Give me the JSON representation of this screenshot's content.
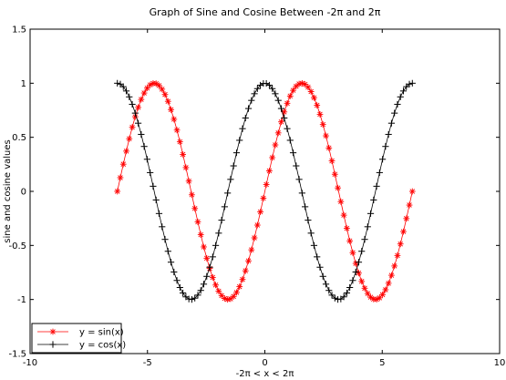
{
  "chart_data": {
    "type": "line",
    "title": "Graph of Sine and Cosine Between -2π and 2π",
    "xlabel": "-2π < x < 2π",
    "ylabel": "sine and cosine values",
    "xlim": [
      -10,
      10
    ],
    "ylim": [
      -1.5,
      1.5
    ],
    "xticks": [
      -10,
      -5,
      0,
      5,
      10
    ],
    "xtick_labels": [
      "-10",
      "-5",
      "0",
      "5",
      "10"
    ],
    "yticks": [
      -1.5,
      -1,
      -0.5,
      0,
      0.5,
      1,
      1.5
    ],
    "ytick_labels": [
      "-1.5",
      "-1",
      "-0.5",
      "0",
      "0.5",
      "1",
      "1.5"
    ],
    "grid": false,
    "legend_position": "bottom-left",
    "x_range": [
      -6.283,
      6.283
    ],
    "num_points": 100,
    "series": [
      {
        "name": "y = sin(x)",
        "function": "sin",
        "color": "#ff0000",
        "marker": "asterisk"
      },
      {
        "name": "y = cos(x)",
        "function": "cos",
        "color": "#000000",
        "marker": "plus"
      }
    ]
  }
}
